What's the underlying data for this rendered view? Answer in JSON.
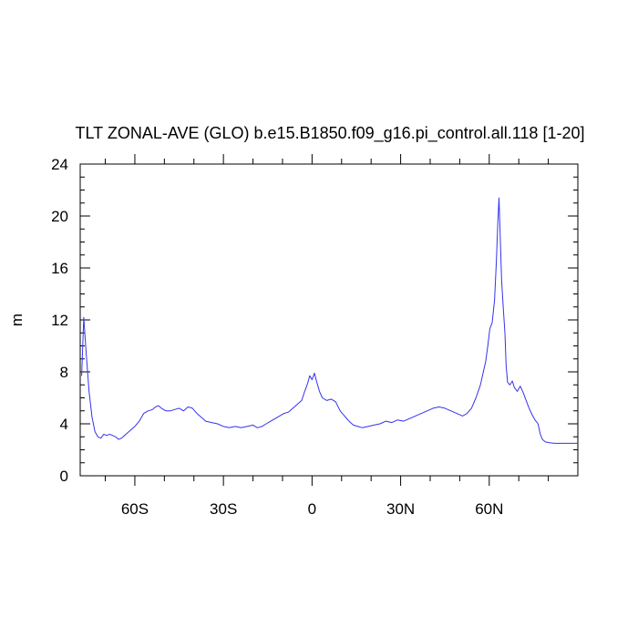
{
  "chart_data": {
    "type": "line",
    "title": "TLT ZONAL-AVE (GLO) b.e15.B1850.f09_g16.pi_control.all.118 [1-20]",
    "xlabel": "",
    "ylabel": "m",
    "xlim": [
      -78.5,
      90
    ],
    "ylim": [
      0,
      24
    ],
    "x_tick_values": [
      -60,
      -30,
      0,
      30,
      60
    ],
    "x_tick_labels": [
      "60S",
      "30S",
      "0",
      "30N",
      "60N"
    ],
    "y_tick_values": [
      0,
      4,
      8,
      12,
      16,
      20,
      24
    ],
    "y_tick_labels": [
      "0",
      "4",
      "8",
      "12",
      "16",
      "20",
      "24"
    ],
    "grid": false,
    "line_color": "#3333ee",
    "series": [
      {
        "values": [
          [
            -78.0,
            7.7
          ],
          [
            -77.3,
            12.2
          ],
          [
            -76.5,
            9.5
          ],
          [
            -75.5,
            6.5
          ],
          [
            -74.5,
            4.5
          ],
          [
            -73.5,
            3.4
          ],
          [
            -72.5,
            3.0
          ],
          [
            -71.5,
            2.9
          ],
          [
            -70.5,
            3.2
          ],
          [
            -69.5,
            3.1
          ],
          [
            -68.5,
            3.2
          ],
          [
            -67.5,
            3.1
          ],
          [
            -66.5,
            3.0
          ],
          [
            -65.5,
            2.8
          ],
          [
            -64.5,
            2.9
          ],
          [
            -63.0,
            3.2
          ],
          [
            -61.5,
            3.5
          ],
          [
            -60.0,
            3.8
          ],
          [
            -58.5,
            4.2
          ],
          [
            -57.0,
            4.8
          ],
          [
            -55.5,
            5.0
          ],
          [
            -54.0,
            5.1
          ],
          [
            -53.0,
            5.3
          ],
          [
            -52.0,
            5.4
          ],
          [
            -51.0,
            5.2
          ],
          [
            -49.5,
            5.0
          ],
          [
            -48.0,
            5.0
          ],
          [
            -46.5,
            5.1
          ],
          [
            -45.0,
            5.2
          ],
          [
            -43.5,
            5.0
          ],
          [
            -42.0,
            5.3
          ],
          [
            -40.5,
            5.2
          ],
          [
            -39.0,
            4.8
          ],
          [
            -37.5,
            4.5
          ],
          [
            -36.0,
            4.2
          ],
          [
            -34.0,
            4.1
          ],
          [
            -32.0,
            4.0
          ],
          [
            -30.0,
            3.8
          ],
          [
            -28.0,
            3.7
          ],
          [
            -26.0,
            3.8
          ],
          [
            -24.0,
            3.7
          ],
          [
            -22.0,
            3.8
          ],
          [
            -20.0,
            3.9
          ],
          [
            -18.5,
            3.7
          ],
          [
            -17.0,
            3.8
          ],
          [
            -15.5,
            4.0
          ],
          [
            -14.0,
            4.2
          ],
          [
            -12.5,
            4.4
          ],
          [
            -11.0,
            4.6
          ],
          [
            -9.5,
            4.8
          ],
          [
            -8.0,
            4.9
          ],
          [
            -6.5,
            5.2
          ],
          [
            -5.0,
            5.5
          ],
          [
            -3.5,
            5.8
          ],
          [
            -2.5,
            6.5
          ],
          [
            -1.5,
            7.1
          ],
          [
            -0.8,
            7.7
          ],
          [
            0.0,
            7.4
          ],
          [
            0.8,
            7.9
          ],
          [
            1.5,
            7.3
          ],
          [
            2.5,
            6.5
          ],
          [
            3.5,
            6.0
          ],
          [
            5.0,
            5.8
          ],
          [
            6.5,
            5.9
          ],
          [
            8.0,
            5.7
          ],
          [
            9.5,
            5.0
          ],
          [
            11.0,
            4.6
          ],
          [
            12.5,
            4.2
          ],
          [
            14.0,
            3.9
          ],
          [
            15.5,
            3.8
          ],
          [
            17.0,
            3.7
          ],
          [
            19.0,
            3.8
          ],
          [
            21.0,
            3.9
          ],
          [
            23.0,
            4.0
          ],
          [
            25.0,
            4.2
          ],
          [
            27.0,
            4.1
          ],
          [
            29.0,
            4.3
          ],
          [
            31.0,
            4.2
          ],
          [
            33.0,
            4.4
          ],
          [
            35.0,
            4.6
          ],
          [
            37.0,
            4.8
          ],
          [
            39.0,
            5.0
          ],
          [
            41.0,
            5.2
          ],
          [
            43.0,
            5.3
          ],
          [
            45.0,
            5.2
          ],
          [
            47.0,
            5.0
          ],
          [
            49.0,
            4.8
          ],
          [
            51.0,
            4.6
          ],
          [
            52.5,
            4.8
          ],
          [
            54.0,
            5.2
          ],
          [
            55.5,
            6.0
          ],
          [
            57.0,
            7.0
          ],
          [
            58.0,
            8.0
          ],
          [
            58.8,
            8.8
          ],
          [
            59.5,
            10.0
          ],
          [
            60.2,
            11.3
          ],
          [
            61.0,
            11.8
          ],
          [
            61.8,
            13.5
          ],
          [
            62.4,
            16.5
          ],
          [
            62.9,
            19.5
          ],
          [
            63.3,
            21.4
          ],
          [
            63.7,
            18.5
          ],
          [
            64.2,
            15.0
          ],
          [
            64.8,
            12.8
          ],
          [
            65.3,
            11.0
          ],
          [
            65.7,
            8.5
          ],
          [
            66.2,
            7.2
          ],
          [
            67.0,
            7.0
          ],
          [
            67.8,
            7.3
          ],
          [
            68.5,
            6.8
          ],
          [
            69.5,
            6.5
          ],
          [
            70.5,
            6.9
          ],
          [
            71.5,
            6.4
          ],
          [
            72.5,
            5.8
          ],
          [
            73.5,
            5.2
          ],
          [
            74.5,
            4.7
          ],
          [
            75.5,
            4.3
          ],
          [
            76.5,
            4.0
          ],
          [
            77.3,
            3.2
          ],
          [
            78.0,
            2.8
          ],
          [
            79.0,
            2.6
          ],
          [
            80.5,
            2.55
          ],
          [
            82.0,
            2.5
          ],
          [
            84.0,
            2.5
          ],
          [
            86.0,
            2.5
          ],
          [
            88.0,
            2.5
          ],
          [
            90.0,
            2.5
          ]
        ]
      }
    ]
  }
}
